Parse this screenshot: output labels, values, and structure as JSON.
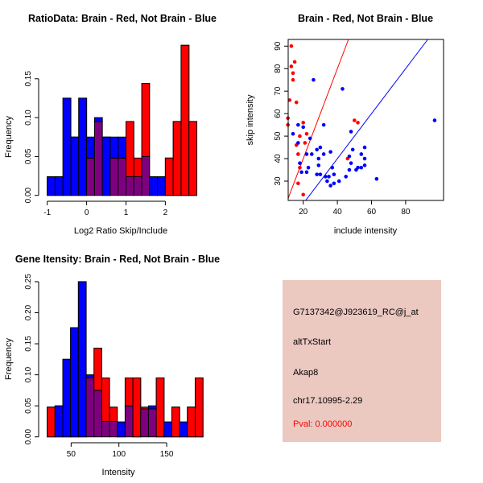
{
  "colors": {
    "red": "#ff0000",
    "blue": "#0000ff",
    "overlap_purple": "#7f007f",
    "bar_border": "#000000",
    "axis": "#000000",
    "info_box_bg": "#ebc8c0",
    "pval_red": "#ff0000"
  },
  "chart_data": [
    {
      "type": "bar",
      "subtype": "overlaid-histograms",
      "title": "RatioData: Brain - Red, Not Brain - Blue",
      "xlabel": "Log2 Ratio Skip/Include",
      "ylabel": "Frequency",
      "x_ticks": [
        -1,
        0,
        1,
        2
      ],
      "y_tick_labels": [
        "0.00",
        "0.05",
        "0.10",
        "0.15"
      ],
      "xlim": [
        -1.0,
        2.8
      ],
      "ylim": [
        0,
        0.193
      ],
      "bin_start": -1.0,
      "bin_width": 0.2,
      "grid": false,
      "series": [
        {
          "name": "Brain (red)",
          "color_key": "red",
          "values": [
            0,
            0,
            0,
            0,
            0,
            0.048,
            0.095,
            0,
            0.048,
            0.048,
            0.095,
            0.048,
            0.144,
            0,
            0,
            0.048,
            0.095,
            0.193,
            0.095
          ]
        },
        {
          "name": "Not Brain (blue)",
          "color_key": "blue",
          "values": [
            0.024,
            0.024,
            0.125,
            0.075,
            0.125,
            0.075,
            0.1,
            0.075,
            0.075,
            0.075,
            0.024,
            0.024,
            0.05,
            0.024,
            0.024,
            0,
            0,
            0,
            0
          ]
        }
      ]
    },
    {
      "type": "scatter",
      "title": "Brain - Red, Not Brain - Blue",
      "xlabel": "include intensity",
      "ylabel": "skip intensity",
      "x_ticks": [
        20,
        40,
        60,
        80
      ],
      "y_ticks": [
        30,
        40,
        50,
        60,
        70,
        80,
        90
      ],
      "xlim": [
        11,
        102
      ],
      "ylim": [
        21,
        93
      ],
      "grid": false,
      "series": [
        {
          "name": "Brain (red)",
          "color_key": "red",
          "points": [
            [
              13,
              90
            ],
            [
              15,
              83
            ],
            [
              13,
              81
            ],
            [
              14,
              78
            ],
            [
              14,
              75
            ],
            [
              12,
              66
            ],
            [
              16,
              65
            ],
            [
              11,
              58
            ],
            [
              11,
              55
            ],
            [
              20,
              56
            ],
            [
              18,
              50
            ],
            [
              22,
              51
            ],
            [
              16,
              46
            ],
            [
              21,
              47
            ],
            [
              17,
              42
            ],
            [
              18,
              36
            ],
            [
              17,
              29
            ],
            [
              20,
              24
            ],
            [
              50,
              57
            ],
            [
              52,
              56
            ],
            [
              46,
              40
            ]
          ]
        },
        {
          "name": "Not Brain (blue)",
          "color_key": "blue",
          "points": [
            [
              26,
              75
            ],
            [
              43,
              71
            ],
            [
              97,
              57
            ],
            [
              17,
              55
            ],
            [
              20,
              54
            ],
            [
              32,
              55
            ],
            [
              14,
              51
            ],
            [
              48,
              52
            ],
            [
              24,
              49
            ],
            [
              17,
              47
            ],
            [
              30,
              45
            ],
            [
              28,
              44
            ],
            [
              22,
              42
            ],
            [
              25,
              42
            ],
            [
              32,
              42
            ],
            [
              36,
              43
            ],
            [
              29,
              40
            ],
            [
              18,
              38
            ],
            [
              29,
              37
            ],
            [
              23,
              36
            ],
            [
              19,
              34
            ],
            [
              22,
              34
            ],
            [
              28,
              33
            ],
            [
              30,
              33
            ],
            [
              33,
              32
            ],
            [
              35,
              32
            ],
            [
              34,
              30
            ],
            [
              37,
              36
            ],
            [
              38,
              33
            ],
            [
              38,
              29
            ],
            [
              36,
              28
            ],
            [
              41,
              30
            ],
            [
              45,
              32
            ],
            [
              49,
              44
            ],
            [
              56,
              45
            ],
            [
              54,
              42
            ],
            [
              47,
              41
            ],
            [
              48,
              38
            ],
            [
              47,
              35
            ],
            [
              51,
              35
            ],
            [
              52,
              36
            ],
            [
              54,
              36
            ],
            [
              56,
              40
            ],
            [
              56,
              37
            ],
            [
              63,
              31
            ]
          ]
        }
      ],
      "lines": [
        {
          "name": "ratio-2x-line",
          "color_key": "red",
          "slope": 2,
          "intercept": 0
        },
        {
          "name": "identity-line",
          "color_key": "blue",
          "slope": 1,
          "intercept": 0
        }
      ]
    },
    {
      "type": "bar",
      "subtype": "overlaid-histograms",
      "title": "Gene Itensity: Brain - Red, Not Brain - Blue",
      "xlabel": "Intensity",
      "ylabel": "Frequency",
      "x_ticks": [
        50,
        100,
        150
      ],
      "y_tick_labels": [
        "0.00",
        "0.05",
        "0.10",
        "0.15",
        "0.20",
        "0.25"
      ],
      "xlim": [
        25,
        188
      ],
      "ylim": [
        0,
        0.25
      ],
      "bin_start": 25,
      "bin_width": 8.15,
      "grid": false,
      "series": [
        {
          "name": "Brain (red)",
          "color_key": "red",
          "values": [
            0.048,
            0,
            0,
            0,
            0,
            0.095,
            0.143,
            0.095,
            0.048,
            0,
            0.095,
            0.095,
            0.048,
            0.045,
            0.095,
            0,
            0.048,
            0,
            0.048,
            0.095
          ]
        },
        {
          "name": "Not Brain (blue)",
          "color_key": "blue",
          "values": [
            0,
            0.05,
            0.125,
            0.176,
            0.25,
            0.1,
            0.075,
            0.025,
            0.025,
            0.024,
            0.05,
            0,
            0.045,
            0.05,
            0,
            0.024,
            0,
            0.024,
            0,
            0
          ]
        }
      ]
    }
  ],
  "info_box": {
    "probe_id": "G7137342@J923619_RC@j_at",
    "event_type": "altTxStart",
    "gene": "Akap8",
    "location": "chr17.10995-2.29",
    "pval_label": "Pval: 0.000000"
  }
}
